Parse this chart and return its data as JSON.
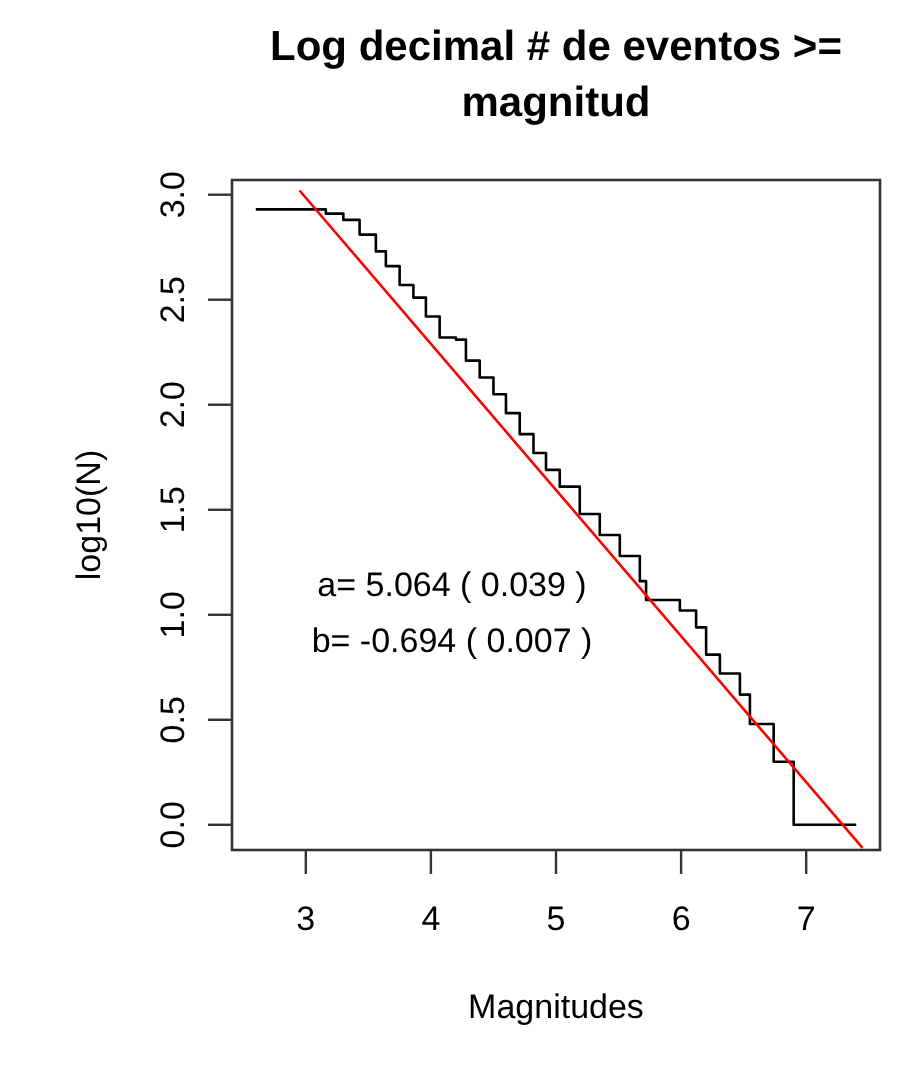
{
  "chart_data": {
    "type": "step",
    "title": "Log decimal # de eventos >= magnitud",
    "xlabel": "Magnitudes",
    "ylabel": "log10(N)",
    "xlim": [
      2.41,
      7.59
    ],
    "ylim": [
      -0.12,
      3.07
    ],
    "xticks": [
      3,
      4,
      5,
      6,
      7
    ],
    "yticks": [
      {
        "value": 0,
        "label": "0.0"
      },
      {
        "value": 0.5,
        "label": "0.5"
      },
      {
        "value": 1,
        "label": "1.0"
      },
      {
        "value": 1.5,
        "label": "1.5"
      },
      {
        "value": 2,
        "label": "2.0"
      },
      {
        "value": 2.5,
        "label": "2.5"
      },
      {
        "value": 3,
        "label": "3.0"
      }
    ],
    "grid": false,
    "marker": "none",
    "series": [
      {
        "color": "#000000",
        "x": [
          2.6,
          3.16,
          3.3,
          3.43,
          3.56,
          3.64,
          3.75,
          3.86,
          3.96,
          4.07,
          4.2,
          4.28,
          4.39,
          4.5,
          4.6,
          4.71,
          4.82,
          4.92,
          5.03,
          5.19,
          5.35,
          5.51,
          5.67,
          5.72,
          5.88,
          5.99,
          6.12,
          6.2,
          6.31,
          6.47,
          6.55,
          6.66,
          6.74,
          6.87,
          6.9,
          7.4
        ],
        "values": [
          2.93,
          2.91,
          2.88,
          2.81,
          2.73,
          2.66,
          2.57,
          2.51,
          2.42,
          2.32,
          2.31,
          2.21,
          2.13,
          2.05,
          1.96,
          1.86,
          1.77,
          1.69,
          1.61,
          1.48,
          1.38,
          1.28,
          1.16,
          1.07,
          1.07,
          1.02,
          0.94,
          0.81,
          0.72,
          0.62,
          0.48,
          0.48,
          0.3,
          0.3,
          0,
          0
        ]
      },
      {
        "type": "line",
        "color": "#ff0000",
        "x": [
          2.95,
          7.45
        ],
        "values": [
          3.02,
          -0.11
        ]
      }
    ],
    "annotations": [
      "a= 5.064 ( 0.039 )",
      "b= -0.694 ( 0.007 )"
    ]
  }
}
